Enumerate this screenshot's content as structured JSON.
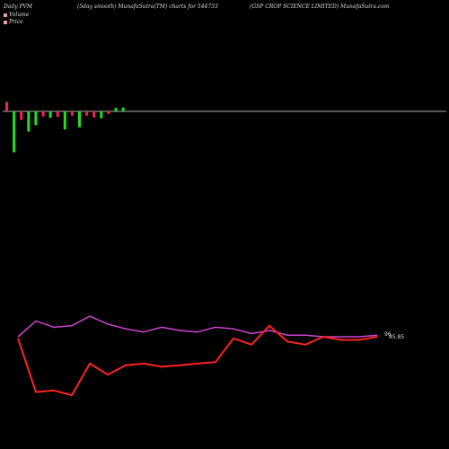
{
  "header": {
    "left": "Daily PVM",
    "center": "(5day smooth) MunafaSutra(TM) charts for 544733",
    "right": "(GSP CROP SCIENCE LIMITED) MunafaSutra.com"
  },
  "legend": {
    "volume_label": "Volume",
    "volume_color": "#f0a0a0",
    "price_label": "Price",
    "price_color": "#f0a0a0"
  },
  "colors": {
    "up": "#22dd22",
    "down": "#ee2255",
    "price_line": "#ff2222",
    "smooth_line": "#cc44cc",
    "baseline": "#aaaaaa"
  },
  "chart_data": {
    "type": "line",
    "volume": {
      "values": [
        2.2,
        -9.5,
        -2.0,
        -4.7,
        -3.2,
        -1.2,
        -1.5,
        -1.3,
        -4.2,
        -1.0,
        -3.7,
        -1.0,
        -1.4,
        -1.6,
        -0.6,
        0.8,
        0.9
      ],
      "up_down": [
        "down",
        "up",
        "down",
        "up",
        "up",
        "down",
        "up",
        "down",
        "up",
        "down",
        "up",
        "down",
        "down",
        "up",
        "down",
        "up",
        "up"
      ]
    },
    "price": {
      "values": [
        99.7,
        96.3,
        96.4,
        96.1,
        98.1,
        97.4,
        98.0,
        98.1,
        97.9,
        98.0,
        98.1,
        98.2,
        99.7,
        99.3,
        100.5,
        99.5,
        99.3,
        99.8,
        99.6,
        99.6,
        99.8
      ],
      "last_label": "96",
      "last_label_alt": "85.85"
    },
    "smooth": {
      "values": [
        99.8,
        100.8,
        100.4,
        100.5,
        101.1,
        100.6,
        100.3,
        100.1,
        100.4,
        100.2,
        100.1,
        100.4,
        100.3,
        100.0,
        100.2,
        99.9,
        99.9,
        99.8,
        99.8,
        99.8,
        99.9
      ]
    }
  }
}
